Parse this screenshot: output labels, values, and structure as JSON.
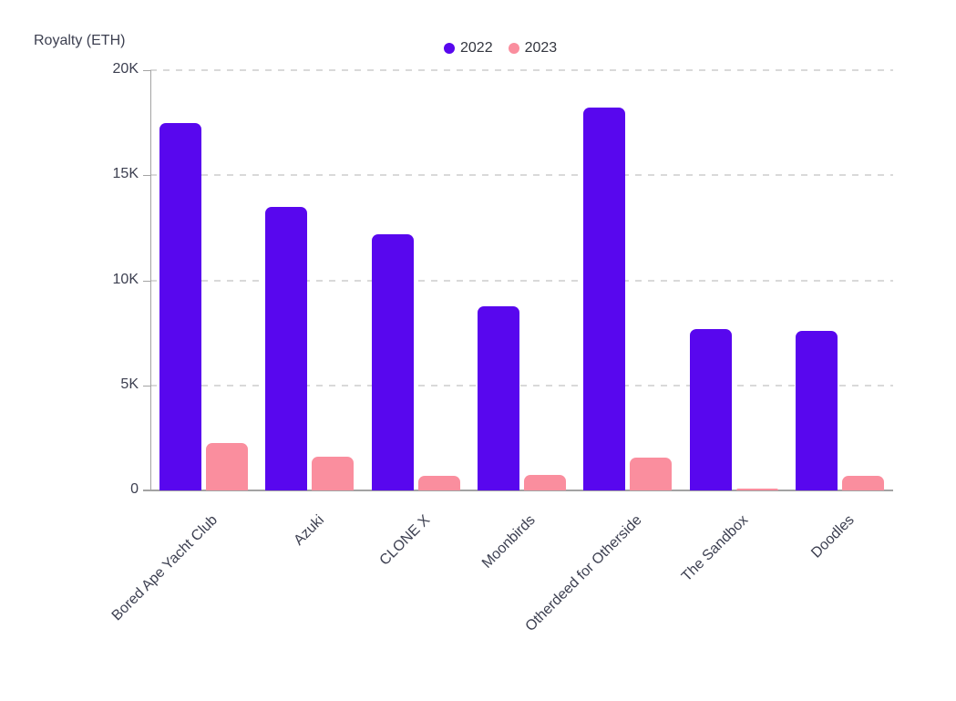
{
  "chart_data": {
    "type": "bar",
    "title": "",
    "ylabel": "Royalty (ETH)",
    "xlabel": "",
    "categories": [
      "Bored Ape Yacht Club",
      "Azuki",
      "CLONE X",
      "Moonbirds",
      "Otherdeed for Otherside",
      "The Sandbox",
      "Doodles"
    ],
    "series": [
      {
        "name": "2022",
        "color": "#5807ee",
        "values": [
          17500,
          13500,
          12200,
          8750,
          18200,
          7700,
          7600
        ]
      },
      {
        "name": "2023",
        "color": "#fa8e9e",
        "values": [
          2250,
          1600,
          700,
          750,
          1550,
          100,
          700
        ]
      }
    ],
    "ylim": [
      0,
      20000
    ],
    "y_ticks": [
      {
        "label": "20K",
        "value": 20000
      },
      {
        "label": "15K",
        "value": 15000
      },
      {
        "label": "10K",
        "value": 10000
      },
      {
        "label": "5K",
        "value": 5000
      },
      {
        "label": "0",
        "value": 0
      }
    ],
    "legend_position": "top-center",
    "grid": "horizontal-dashed",
    "styles": {
      "grid_color": "#d9d9d9",
      "axis_color": "#a3a3a3",
      "text_color": "#3c3f50",
      "background": "#ffffff"
    }
  }
}
